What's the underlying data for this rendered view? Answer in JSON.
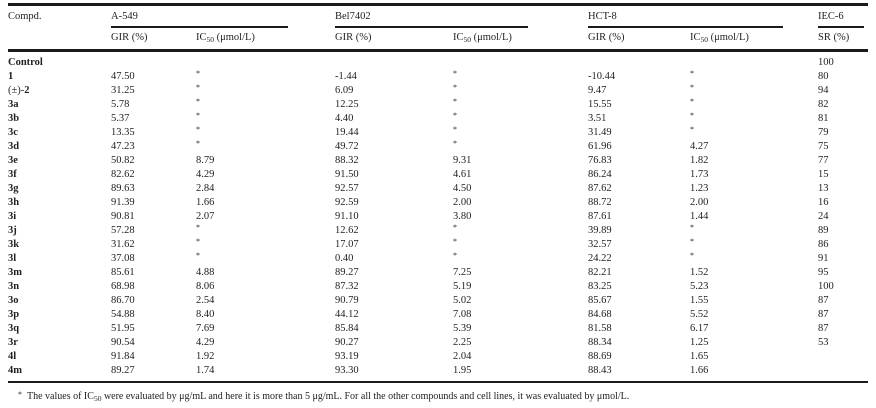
{
  "table": {
    "header": {
      "compound_label": "Compd.",
      "groups": [
        {
          "name": "A-549"
        },
        {
          "name": "Bel7402"
        },
        {
          "name": "HCT-8"
        },
        {
          "name": "IEC-6"
        }
      ],
      "gir_label": "GIR (%)",
      "ic50_pre": "IC",
      "ic50_sub": "50",
      "ic50_unit": " (μmol/L)",
      "sr_label": "SR (%)"
    },
    "rows": [
      {
        "prefix": "",
        "compound": "Control",
        "values": [
          "",
          "",
          "",
          "",
          "",
          "",
          "100"
        ]
      },
      {
        "prefix": "",
        "compound": "1",
        "values": [
          "47.50",
          "*",
          "-1.44",
          "*",
          "-10.44",
          "*",
          "80"
        ]
      },
      {
        "prefix": "(±)-",
        "compound": "2",
        "values": [
          "31.25",
          "*",
          "6.09",
          "*",
          "9.47",
          "*",
          "94"
        ]
      },
      {
        "prefix": "",
        "compound": "3a",
        "values": [
          "5.78",
          "*",
          "12.25",
          "*",
          "15.55",
          "*",
          "82"
        ]
      },
      {
        "prefix": "",
        "compound": "3b",
        "values": [
          "5.37",
          "*",
          "4.40",
          "*",
          "3.51",
          "*",
          "81"
        ]
      },
      {
        "prefix": "",
        "compound": "3c",
        "values": [
          "13.35",
          "*",
          "19.44",
          "*",
          "31.49",
          "*",
          "79"
        ]
      },
      {
        "prefix": "",
        "compound": "3d",
        "values": [
          "47.23",
          "*",
          "49.72",
          "*",
          "61.96",
          "4.27",
          "75"
        ]
      },
      {
        "prefix": "",
        "compound": "3e",
        "values": [
          "50.82",
          "8.79",
          "88.32",
          "9.31",
          "76.83",
          "1.82",
          "77"
        ]
      },
      {
        "prefix": "",
        "compound": "3f",
        "values": [
          "82.62",
          "4.29",
          "91.50",
          "4.61",
          "86.24",
          "1.73",
          "15"
        ]
      },
      {
        "prefix": "",
        "compound": "3g",
        "values": [
          "89.63",
          "2.84",
          "92.57",
          "4.50",
          "87.62",
          "1.23",
          "13"
        ]
      },
      {
        "prefix": "",
        "compound": "3h",
        "values": [
          "91.39",
          "1.66",
          "92.59",
          "2.00",
          "88.72",
          "2.00",
          "16"
        ]
      },
      {
        "prefix": "",
        "compound": "3i",
        "values": [
          "90.81",
          "2.07",
          "91.10",
          "3.80",
          "87.61",
          "1.44",
          "24"
        ]
      },
      {
        "prefix": "",
        "compound": "3j",
        "values": [
          "57.28",
          "*",
          "12.62",
          "*",
          "39.89",
          "*",
          "89"
        ]
      },
      {
        "prefix": "",
        "compound": "3k",
        "values": [
          "31.62",
          "*",
          "17.07",
          "*",
          "32.57",
          "*",
          "86"
        ]
      },
      {
        "prefix": "",
        "compound": "3l",
        "values": [
          "37.08",
          "*",
          "0.40",
          "*",
          "24.22",
          "*",
          "91"
        ]
      },
      {
        "prefix": "",
        "compound": "3m",
        "values": [
          "85.61",
          "4.88",
          "89.27",
          "7.25",
          "82.21",
          "1.52",
          "95"
        ]
      },
      {
        "prefix": "",
        "compound": "3n",
        "values": [
          "68.98",
          "8.06",
          "87.32",
          "5.19",
          "83.25",
          "5.23",
          "100"
        ]
      },
      {
        "prefix": "",
        "compound": "3o",
        "values": [
          "86.70",
          "2.54",
          "90.79",
          "5.02",
          "85.67",
          "1.55",
          "87"
        ]
      },
      {
        "prefix": "",
        "compound": "3p",
        "values": [
          "54.88",
          "8.40",
          "44.12",
          "7.08",
          "84.68",
          "5.52",
          "87"
        ]
      },
      {
        "prefix": "",
        "compound": "3q",
        "values": [
          "51.95",
          "7.69",
          "85.84",
          "5.39",
          "81.58",
          "6.17",
          "87"
        ]
      },
      {
        "prefix": "",
        "compound": "3r",
        "values": [
          "90.54",
          "4.29",
          "90.27",
          "2.25",
          "88.34",
          "1.25",
          "53"
        ]
      },
      {
        "prefix": "",
        "compound": "4l",
        "values": [
          "91.84",
          "1.92",
          "93.19",
          "2.04",
          "88.69",
          "1.65",
          ""
        ]
      },
      {
        "prefix": "",
        "compound": "4m",
        "values": [
          "89.27",
          "1.74",
          "93.30",
          "1.95",
          "88.43",
          "1.66",
          ""
        ]
      }
    ]
  },
  "footnote": {
    "marker": "*",
    "text_pre": "The values of IC",
    "text_sub": "50",
    "text_post": " were evaluated by μg/mL and here it is more than 5 μg/mL. For all the other compounds and cell lines, it was evaluated by μmol/L."
  },
  "colors": {
    "text": "#222222",
    "rule": "#1a1a1a",
    "background": "#ffffff"
  }
}
